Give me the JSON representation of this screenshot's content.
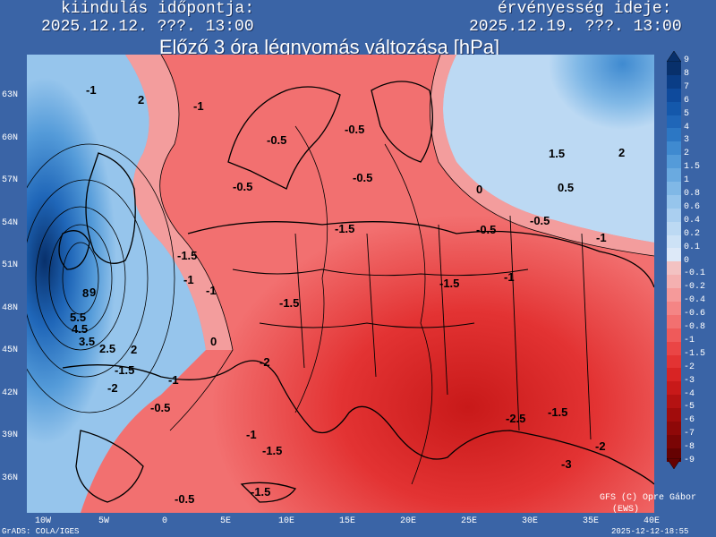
{
  "header": {
    "left_label": "kiindulás időpontja:",
    "left_value": "2025.12.12. ???. 13:00",
    "right_label": "érvényesség ideje:",
    "right_value": "2025.12.19. ???. 13:00"
  },
  "title": "Előző 3 óra légnyomás változása [hPa]",
  "axes": {
    "lat_labels": [
      "63N",
      "60N",
      "57N",
      "54N",
      "51N",
      "48N",
      "45N",
      "42N",
      "39N",
      "36N"
    ],
    "lon_labels": [
      "10W",
      "5W",
      "0",
      "5E",
      "10E",
      "15E",
      "20E",
      "25E",
      "30E",
      "35E",
      "40E"
    ]
  },
  "colorbar": {
    "labels": [
      "9",
      "8",
      "7",
      "6",
      "5",
      "4",
      "3",
      "2",
      "1.5",
      "1",
      "0.8",
      "0.6",
      "0.4",
      "0.2",
      "0.1",
      "0",
      "-0.1",
      "-0.2",
      "-0.4",
      "-0.6",
      "-0.8",
      "-1",
      "-1.5",
      "-2",
      "-3",
      "-4",
      "-5",
      "-6",
      "-7",
      "-8",
      "-9"
    ],
    "colors": [
      "#08306b",
      "#0a3d86",
      "#0e4a9c",
      "#1458ab",
      "#1f66b8",
      "#2c77c4",
      "#3f8ad0",
      "#549bd9",
      "#6aaae0",
      "#80b8e6",
      "#96c5ec",
      "#aacff0",
      "#bcd9f3",
      "#cde2f6",
      "#dde9f8",
      "#f3c2c2",
      "#f4b0b0",
      "#f59a9a",
      "#f48585",
      "#f27070",
      "#ef5a5a",
      "#ea4545",
      "#e33333",
      "#d82424",
      "#c81919",
      "#b41212",
      "#a10c0c",
      "#8e0808",
      "#7a0505",
      "#650202"
    ]
  },
  "contour_labels": [
    {
      "text": "-1"
    },
    {
      "text": "2"
    },
    {
      "text": "-1"
    },
    {
      "text": "-0.5"
    },
    {
      "text": "-0.5"
    },
    {
      "text": "-0.5"
    },
    {
      "text": "-0.5"
    },
    {
      "text": "1.5"
    },
    {
      "text": "2"
    },
    {
      "text": "0"
    },
    {
      "text": "0.5"
    },
    {
      "text": "-0.5"
    },
    {
      "text": "-0.5"
    },
    {
      "text": "-1"
    },
    {
      "text": "-1.5"
    },
    {
      "text": "-1"
    },
    {
      "text": "-1.5"
    },
    {
      "text": "-1.5"
    },
    {
      "text": "-1"
    },
    {
      "text": "-1"
    },
    {
      "text": "-1.5"
    },
    {
      "text": "9"
    },
    {
      "text": "8"
    },
    {
      "text": "5.5"
    },
    {
      "text": "4.5"
    },
    {
      "text": "3.5"
    },
    {
      "text": "2.5"
    },
    {
      "text": "2"
    },
    {
      "text": "-1.5"
    },
    {
      "text": "-1"
    },
    {
      "text": "0"
    },
    {
      "text": "-0.5"
    },
    {
      "text": "-2"
    },
    {
      "text": "-2.5"
    },
    {
      "text": "-1.5"
    },
    {
      "text": "-2"
    },
    {
      "text": "-3"
    },
    {
      "text": "-1.5"
    },
    {
      "text": "-1.5"
    },
    {
      "text": "-0.5"
    },
    {
      "text": "-1"
    },
    {
      "text": "-2"
    }
  ],
  "footer": {
    "left": "GrADS: COLA/IGES",
    "right": "2025-12-12-18:55",
    "credit": "GFS (C) Opre Gábor",
    "credit2": "(EWS)"
  }
}
